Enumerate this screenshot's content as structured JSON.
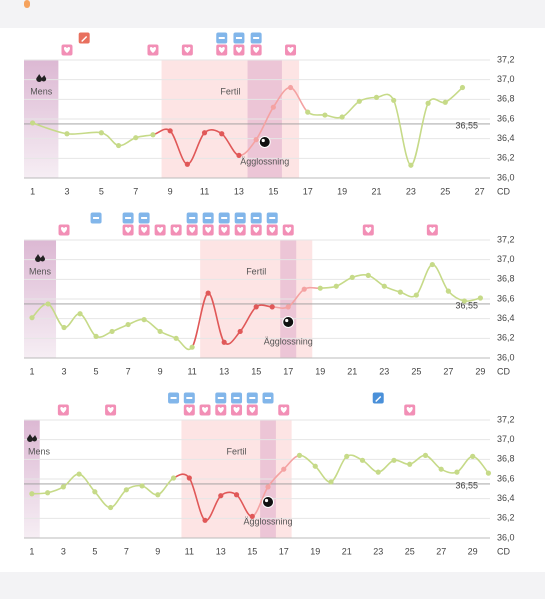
{
  "chart_data": [
    {
      "type": "line",
      "x_label": "CD",
      "x": [
        1,
        3,
        5,
        6,
        7,
        8,
        9,
        10,
        11,
        12,
        13,
        14,
        15,
        16,
        17,
        18,
        19,
        20,
        21,
        22,
        23,
        24,
        25,
        26
      ],
      "values": [
        36.56,
        36.45,
        36.46,
        36.33,
        36.41,
        36.44,
        36.48,
        36.14,
        36.46,
        36.45,
        36.23,
        36.39,
        36.72,
        36.92,
        36.67,
        36.64,
        36.62,
        36.78,
        36.82,
        36.79,
        36.13,
        36.76,
        36.77,
        36.92
      ],
      "xlim": [
        0.5,
        27.6
      ],
      "xticks": [
        1,
        3,
        5,
        7,
        9,
        11,
        13,
        15,
        17,
        19,
        21,
        23,
        25,
        27
      ],
      "ylim": [
        36.0,
        37.2
      ],
      "yticks": [
        {
          "value": 36.0,
          "label": "36,0"
        },
        {
          "value": 36.2,
          "label": "36,2"
        },
        {
          "value": 36.4,
          "label": "36,4"
        },
        {
          "value": 36.6,
          "label": "36,6"
        },
        {
          "value": 36.8,
          "label": "36,8"
        },
        {
          "value": 37.0,
          "label": "37,0"
        },
        {
          "value": 37.2,
          "label": "37,2"
        }
      ],
      "grid": true,
      "coverline": {
        "value": 36.55,
        "label": "36,55"
      },
      "mens": [
        1,
        2
      ],
      "mens_label": "Mens",
      "fertile": [
        9,
        16
      ],
      "fertile_label": "Fertil",
      "ovulation": [
        14,
        15
      ],
      "ovulation_label": "Ägglossning",
      "hearts": [
        3,
        8,
        10,
        12,
        13,
        14,
        16
      ],
      "tests": [
        12,
        13,
        14
      ],
      "notes": [
        4
      ],
      "note_color": "#e8705e",
      "colors": {
        "line": "#c6da88",
        "fertile": "#e05858",
        "post": "#f4a2a2"
      }
    },
    {
      "type": "line",
      "x_label": "CD",
      "x": [
        1,
        2,
        3,
        4,
        5,
        6,
        7,
        8,
        9,
        10,
        11,
        12,
        13,
        14,
        15,
        16,
        17,
        18,
        19,
        20,
        21,
        22,
        23,
        24,
        25,
        26,
        27,
        28,
        29
      ],
      "values": [
        36.41,
        36.55,
        36.31,
        36.45,
        36.22,
        36.27,
        36.34,
        36.39,
        36.27,
        36.2,
        36.11,
        36.66,
        36.16,
        36.27,
        36.52,
        36.52,
        36.52,
        36.7,
        36.71,
        36.73,
        36.82,
        36.84,
        36.73,
        36.67,
        36.64,
        36.95,
        36.68,
        36.58,
        36.61
      ],
      "xlim": [
        0.5,
        29.6
      ],
      "xticks": [
        1,
        3,
        5,
        7,
        9,
        11,
        13,
        15,
        17,
        19,
        21,
        23,
        25,
        27,
        29
      ],
      "ylim": [
        36.0,
        37.2
      ],
      "yticks": [
        {
          "value": 36.0,
          "label": "36,0"
        },
        {
          "value": 36.2,
          "label": "36,2"
        },
        {
          "value": 36.4,
          "label": "36,4"
        },
        {
          "value": 36.6,
          "label": "36,6"
        },
        {
          "value": 36.8,
          "label": "36,8"
        },
        {
          "value": 37.0,
          "label": "37,0"
        },
        {
          "value": 37.2,
          "label": "37,2"
        }
      ],
      "grid": true,
      "coverline": {
        "value": 36.55,
        "label": "36,55"
      },
      "mens": [
        1,
        2
      ],
      "mens_label": "Mens",
      "fertile": [
        12,
        18
      ],
      "fertile_label": "Fertil",
      "ovulation": [
        17,
        17
      ],
      "ovulation_label": "Ägglossning",
      "hearts": [
        3,
        7,
        8,
        9,
        10,
        11,
        12,
        13,
        14,
        15,
        16,
        17,
        22,
        26
      ],
      "tests": [
        5,
        7,
        8,
        11,
        12,
        13,
        14,
        15,
        16
      ],
      "notes": [],
      "note_color": "#4a90d9",
      "colors": {
        "line": "#c6da88",
        "fertile": "#e05858",
        "post": "#f4a2a2"
      }
    },
    {
      "type": "line",
      "x_label": "CD",
      "x": [
        1,
        2,
        3,
        4,
        5,
        6,
        7,
        8,
        9,
        10,
        11,
        12,
        13,
        14,
        15,
        16,
        17,
        18,
        19,
        20,
        21,
        22,
        23,
        24,
        25,
        26,
        27,
        28,
        29,
        30
      ],
      "values": [
        36.45,
        36.46,
        36.52,
        36.65,
        36.47,
        36.31,
        36.49,
        36.53,
        36.44,
        36.61,
        36.61,
        36.18,
        36.43,
        36.44,
        36.22,
        36.52,
        36.7,
        36.84,
        36.73,
        36.57,
        36.83,
        36.79,
        36.67,
        36.79,
        36.75,
        36.84,
        36.7,
        36.67,
        36.83,
        36.66
      ],
      "xlim": [
        0.5,
        30.1
      ],
      "xticks": [
        1,
        3,
        5,
        7,
        9,
        11,
        13,
        15,
        17,
        19,
        21,
        23,
        25,
        27,
        29
      ],
      "ylim": [
        36.0,
        37.2
      ],
      "yticks": [
        {
          "value": 36.0,
          "label": "36,0"
        },
        {
          "value": 36.2,
          "label": "36,2"
        },
        {
          "value": 36.4,
          "label": "36,4"
        },
        {
          "value": 36.6,
          "label": "36,6"
        },
        {
          "value": 36.8,
          "label": "36,8"
        },
        {
          "value": 37.0,
          "label": "37,0"
        },
        {
          "value": 37.2,
          "label": "37,2"
        }
      ],
      "grid": true,
      "coverline": {
        "value": 36.55,
        "label": "36,55"
      },
      "mens": [
        1,
        1
      ],
      "mens_label": "Mens",
      "fertile": [
        11,
        17
      ],
      "fertile_label": "Fertil",
      "ovulation": [
        16,
        16
      ],
      "ovulation_label": "Ägglossning",
      "hearts": [
        3,
        6,
        11,
        12,
        13,
        14,
        15,
        17,
        25
      ],
      "tests": [
        10,
        11,
        13,
        14,
        15,
        16
      ],
      "notes": [
        23
      ],
      "note_color": "#4a90d9",
      "colors": {
        "line": "#c6da88",
        "fertile": "#e05858",
        "post": "#f4a2a2"
      }
    }
  ]
}
